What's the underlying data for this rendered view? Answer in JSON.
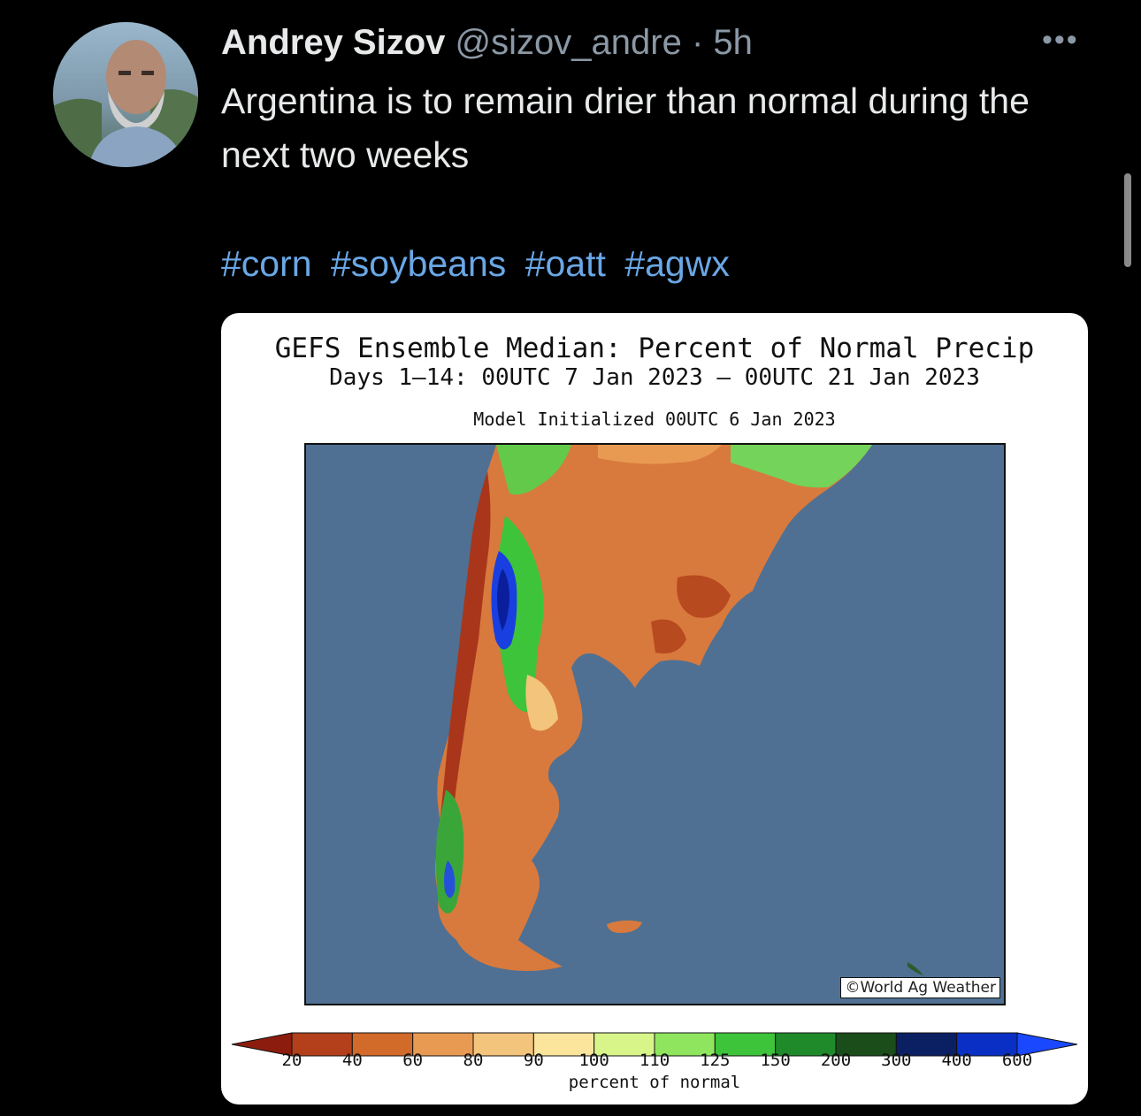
{
  "tweet": {
    "author_name": "Andrey Sizov",
    "handle": "@sizov_andre",
    "separator": "·",
    "time": "5h",
    "more_label": "•••",
    "text": "Argentina is to remain drier than normal during the next two weeks",
    "hashtags": [
      "#corn",
      "#soybeans",
      "#oatt",
      "#agwx"
    ]
  },
  "media": {
    "title_line1": "GEFS Ensemble Median: Percent of Normal Precip",
    "title_line2": "Days 1–14: 00UTC 7 Jan 2023 – 00UTC 21 Jan 2023",
    "model_init": "Model Initialized 00UTC 6 Jan 2023",
    "copyright": "©World Ag Weather",
    "colorbar_ticks": [
      "20",
      "40",
      "60",
      "80",
      "90",
      "100",
      "110",
      "125",
      "150",
      "200",
      "300",
      "400",
      "600"
    ],
    "colorbar_label": "percent of normal",
    "colorbar_colors": [
      "#8c1d0e",
      "#b3401a",
      "#d26a2a",
      "#e99a52",
      "#f3c47b",
      "#fbe59d",
      "#d8f58a",
      "#8fe65e",
      "#3dc43a",
      "#1f8a2a",
      "#1a4d1a",
      "#0b1f63",
      "#0a2fc4",
      "#1a48ff"
    ]
  },
  "icons": {
    "avatar": "user-avatar-photo",
    "more": "more-options-icon"
  }
}
